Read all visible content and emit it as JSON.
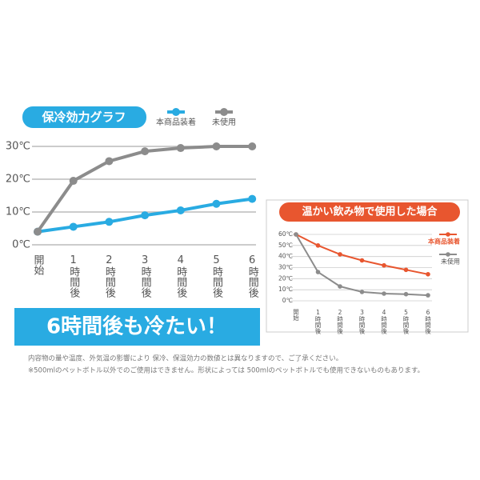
{
  "chart_data": [
    {
      "type": "line",
      "title": "保冷効力グラフ",
      "categories": [
        "開始",
        "1時間後",
        "2時間後",
        "3時間後",
        "4時間後",
        "5時間後",
        "6時間後"
      ],
      "series": [
        {
          "name": "本商品装着",
          "color": "#29abe2",
          "values": [
            4,
            5.5,
            7,
            9,
            10.5,
            12.5,
            14
          ]
        },
        {
          "name": "未使用",
          "color": "#8c8c8c",
          "values": [
            4,
            19.5,
            25.5,
            28.5,
            29.5,
            30,
            30
          ]
        }
      ],
      "ylim": [
        0,
        30
      ],
      "yticks": [
        {
          "value": 0,
          "label": "0℃"
        },
        {
          "value": 10,
          "label": "10℃"
        },
        {
          "value": 20,
          "label": "20℃"
        },
        {
          "value": 30,
          "label": "30℃"
        }
      ],
      "grid": true
    },
    {
      "type": "line",
      "title": "温かい飲み物で使用した場合",
      "categories": [
        "開始",
        "1時間後",
        "2時間後",
        "3時間後",
        "4時間後",
        "5時間後",
        "6時間後"
      ],
      "series": [
        {
          "name": "本商品装着",
          "color": "#e8562f",
          "values": [
            60,
            50,
            42,
            36.5,
            32,
            28,
            24
          ]
        },
        {
          "name": "未使用",
          "color": "#8c8c8c",
          "values": [
            60,
            26,
            13,
            8,
            6.5,
            6,
            5
          ]
        }
      ],
      "ylim": [
        0,
        60
      ],
      "yticks": [
        {
          "value": 0,
          "label": "0℃"
        },
        {
          "value": 10,
          "label": "10℃"
        },
        {
          "value": 20,
          "label": "20℃"
        },
        {
          "value": 30,
          "label": "30℃"
        },
        {
          "value": 40,
          "label": "40℃"
        },
        {
          "value": 50,
          "label": "50℃"
        },
        {
          "value": 60,
          "label": "60℃"
        }
      ],
      "grid": true
    }
  ],
  "banner": "6時間後も冷たい！",
  "notes": [
    "内容物の量や温度、外気温の影響により 保冷、保温効力の数値とは異なりますので、ご了承ください。",
    "※500mlのペットボトル以外でのご使用はできません。形状によっては 500mlのペットボトルでも使用できないものもあります。"
  ]
}
